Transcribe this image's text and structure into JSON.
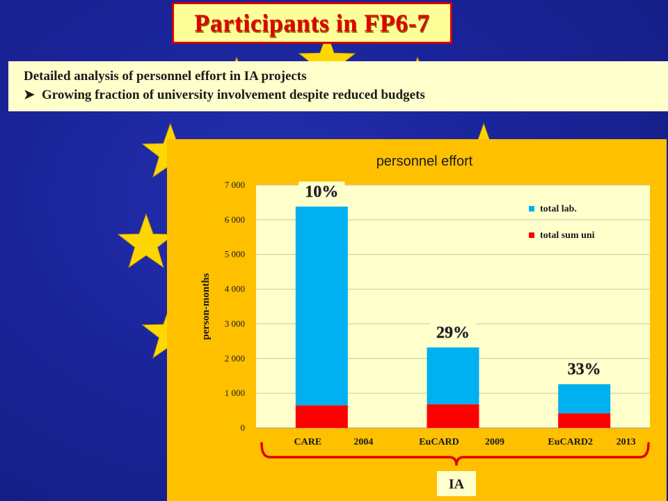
{
  "slide": {
    "title": "Participants in FP6-7",
    "description": {
      "line1": "Detailed analysis of personnel effort in IA projects",
      "line2": "Growing fraction of university involvement despite reduced budgets",
      "bullet_icon": "arrow-bullet-icon"
    },
    "group_label": "IA"
  },
  "colors": {
    "background": "#1a2499",
    "star": "#ffd700",
    "title_bg": "#ffff99",
    "title_text": "#e00000",
    "chart_panel": "#ffc000",
    "plot_bg": "#ffffcc",
    "brace": "#e00000"
  },
  "chart_data": {
    "type": "bar",
    "stacked": true,
    "title": "personnel effort",
    "ylabel": "person-months",
    "xlabel": "",
    "ylim": [
      0,
      7000
    ],
    "yticks": [
      0,
      1000,
      2000,
      3000,
      4000,
      5000,
      6000,
      7000
    ],
    "ytick_labels": [
      "0",
      "1 000",
      "2 000",
      "3 000",
      "4 000",
      "5 000",
      "6 000",
      "7 000"
    ],
    "categories": [
      "CARE",
      "EuCARD",
      "EuCARD2"
    ],
    "category_years": [
      "2004",
      "2009",
      "2013"
    ],
    "series": [
      {
        "name": "total sum uni",
        "color": "#ff0000",
        "values": [
          650,
          680,
          420
        ]
      },
      {
        "name": "total lab.",
        "color": "#00b0f0",
        "values": [
          5730,
          1640,
          840
        ]
      }
    ],
    "legend_order": [
      "total lab.",
      "total sum uni"
    ],
    "legend_position": "top-right",
    "annotations": [
      "10%",
      "29%",
      "33%"
    ],
    "grid": true
  }
}
